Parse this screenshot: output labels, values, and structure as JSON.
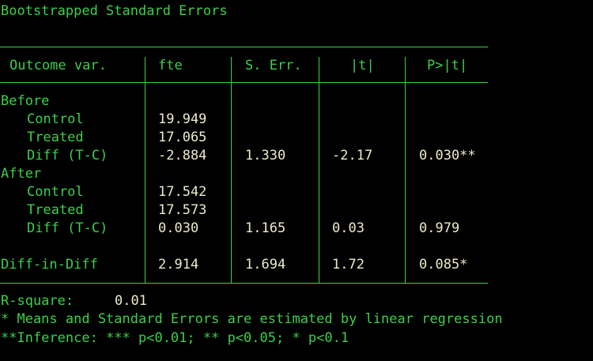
{
  "title": "Bootstrapped Standard Errors",
  "table": {
    "header": [
      "Outcome var.",
      "fte",
      "S. Err.",
      "|t|",
      "P>|t|"
    ],
    "groups": [
      {
        "label": "Before",
        "rows": [
          [
            "Control",
            "19.949"
          ],
          [
            "Treated",
            "17.065"
          ],
          [
            "Diff (T-C)",
            "-2.884",
            "1.330",
            "-2.17",
            "0.030**"
          ]
        ]
      },
      {
        "label": "After",
        "rows": [
          [
            "Control",
            "17.542"
          ],
          [
            "Treated",
            "17.573"
          ],
          [
            "Diff (T-C)",
            "0.030",
            "1.165",
            "0.03",
            "0.979"
          ]
        ]
      }
    ],
    "summary": [
      "Diff-in-Diff",
      "2.914",
      "1.694",
      "1.72",
      "0.085*"
    ]
  },
  "footer": {
    "r_square": {
      "label": "R-square:",
      "value": "0.01"
    },
    "notes": [
      "* Means and Standard Errors are estimated by linear regression",
      "**Inference: *** p<0.01; ** p<0.05; * p<0.1"
    ]
  }
}
